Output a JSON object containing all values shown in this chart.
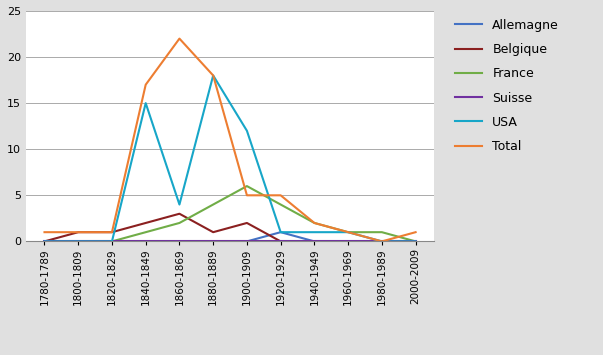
{
  "categories": [
    "1780-1789",
    "1800-1809",
    "1820-1829",
    "1840-1849",
    "1860-1869",
    "1880-1889",
    "1900-1909",
    "1920-1929",
    "1940-1949",
    "1960-1969",
    "1980-1989",
    "2000-2009"
  ],
  "series": {
    "Allemagne": [
      0,
      0,
      0,
      0,
      0,
      0,
      0,
      1,
      0,
      0,
      0,
      0
    ],
    "Belgique": [
      0,
      1,
      1,
      2,
      3,
      1,
      2,
      0,
      0,
      0,
      0,
      0
    ],
    "France": [
      0,
      0,
      0,
      1,
      2,
      4,
      6,
      4,
      2,
      1,
      1,
      0
    ],
    "Suisse": [
      0,
      0,
      0,
      0,
      0,
      0,
      0,
      0,
      0,
      0,
      0,
      0
    ],
    "USA": [
      0,
      0,
      0,
      15,
      4,
      18,
      12,
      1,
      1,
      1,
      0,
      0
    ],
    "Total": [
      1,
      1,
      1,
      17,
      22,
      18,
      5,
      5,
      2,
      1,
      0,
      1
    ]
  },
  "colors": {
    "Allemagne": "#4472C4",
    "Belgique": "#8B2020",
    "France": "#70AD47",
    "Suisse": "#7030A0",
    "USA": "#17A6C8",
    "Total": "#ED7D31"
  },
  "ylim": [
    0,
    25
  ],
  "yticks": [
    0,
    5,
    10,
    15,
    20,
    25
  ],
  "background_color": "#E0E0E0",
  "plot_bg_color": "#FFFFFF",
  "legend_order": [
    "Allemagne",
    "Belgique",
    "France",
    "Suisse",
    "USA",
    "Total"
  ]
}
